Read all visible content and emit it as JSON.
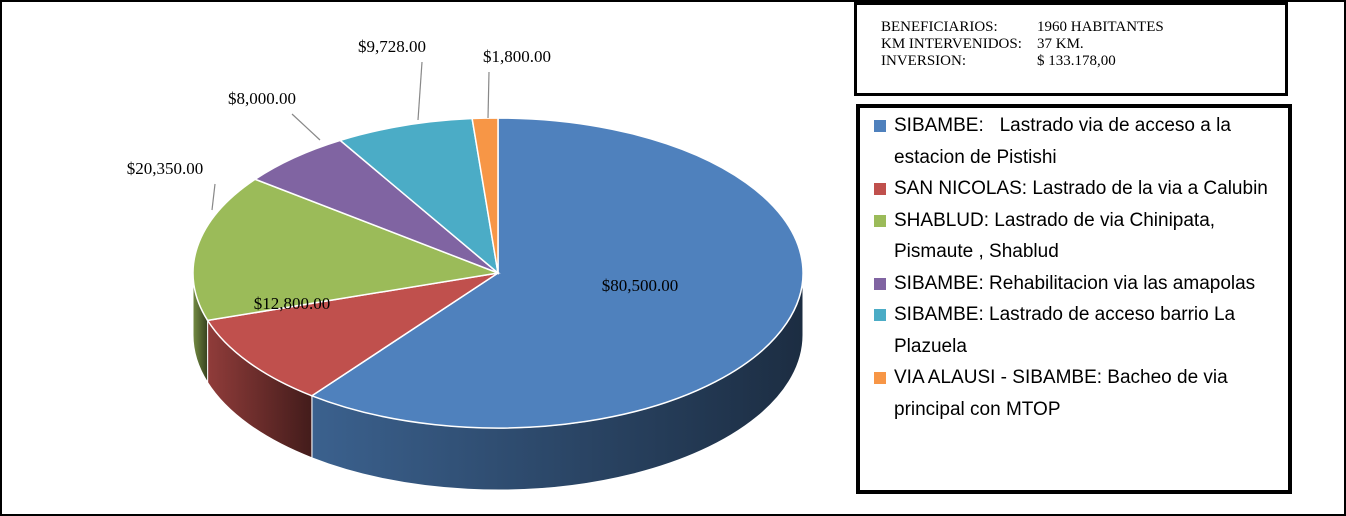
{
  "chart_data": {
    "type": "pie3d",
    "categories": [
      "SIBAMBE:   Lastrado via de acceso a la estacion de Pistishi",
      "SAN NICOLAS: Lastrado de la via a Calubin",
      "SHABLUD: Lastrado de via Chinipata, Pismaute , Shablud",
      "SIBAMBE: Rehabilitacion via las amapolas",
      "SIBAMBE: Lastrado de acceso barrio La Plazuela",
      "VIA ALAUSI - SIBAMBE: Bacheo de via principal con MTOP"
    ],
    "values": [
      80500,
      12800,
      20350,
      8000,
      9728,
      1800
    ],
    "value_labels": [
      "$80,500.00",
      "$12,800.00",
      "$20,350.00",
      "$8,000.00",
      "$9,728.00",
      "$1,800.00"
    ],
    "colors": [
      "#4f81bd",
      "#c0504d",
      "#9bbb59",
      "#8064a2",
      "#4bacc6",
      "#f79646"
    ],
    "legend": "right"
  },
  "info": [
    [
      "BENEFICIARIOS:",
      "1960 HABITANTES"
    ],
    [
      "KM INTERVENIDOS:",
      "37 KM."
    ],
    [
      "INVERSION:",
      "$ 133.178,00"
    ]
  ]
}
